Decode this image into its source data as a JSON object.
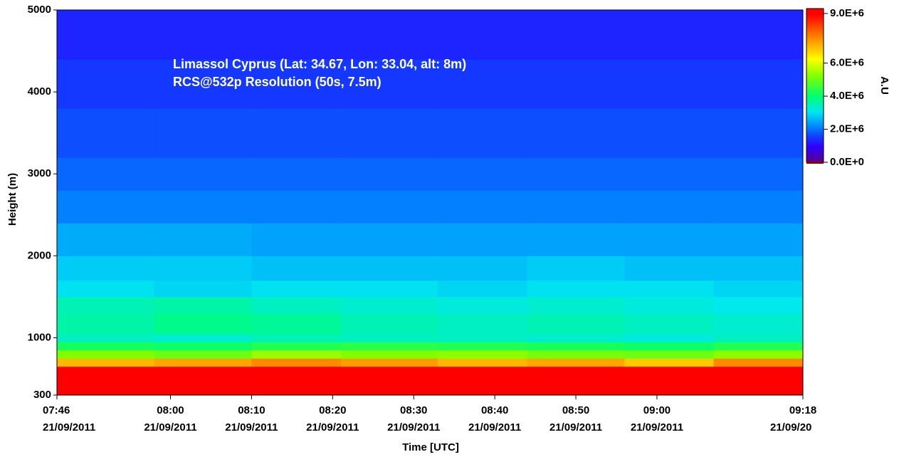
{
  "chart_data": {
    "type": "heatmap",
    "annotations": [
      "Limassol Cyprus (Lat: 34.67, Lon: 33.04, alt: 8m)",
      "RCS@532p Resolution (50s, 7.5m)"
    ],
    "xlabel": "Time [UTC]",
    "ylabel": "Height (m)",
    "colorbar_label": "A.U",
    "x": [
      "2011-09-21T07:46",
      "2011-09-21T07:58",
      "2011-09-21T08:10",
      "2011-09-21T08:21",
      "2011-09-21T08:33",
      "2011-09-21T08:44",
      "2011-09-21T08:56",
      "2011-09-21T09:07",
      "2011-09-21T09:18"
    ],
    "y": [
      300,
      650,
      750,
      850,
      950,
      1050,
      1300,
      1500,
      1700,
      2000,
      2400,
      2800,
      3200,
      3800,
      4400,
      5000
    ],
    "values": [
      [
        9200000,
        9200000,
        9200000,
        9200000,
        9200000,
        9200000,
        9200000,
        9200000
      ],
      [
        7000000,
        7200000,
        7500000,
        7300000,
        7000000,
        7200000,
        6800000,
        7500000
      ],
      [
        5200000,
        5000000,
        5400000,
        5200000,
        5300000,
        5100000,
        5000000,
        5300000
      ],
      [
        4200000,
        4100000,
        4300000,
        4400000,
        4300000,
        4200000,
        4100000,
        4300000
      ],
      [
        3400000,
        3300000,
        3500000,
        3400000,
        3400000,
        3300000,
        3200000,
        3400000
      ],
      [
        3600000,
        3800000,
        3700000,
        3500000,
        3400000,
        3500000,
        3400000,
        3300000
      ],
      [
        3500000,
        3600000,
        3400000,
        3300000,
        3200000,
        3300000,
        3200000,
        3100000
      ],
      [
        3000000,
        2900000,
        3000000,
        3000000,
        2900000,
        3000000,
        3000000,
        2900000
      ],
      [
        2800000,
        2800000,
        2700000,
        2700000,
        2700000,
        2800000,
        2700000,
        2700000
      ],
      [
        2500000,
        2500000,
        2400000,
        2400000,
        2400000,
        2400000,
        2400000,
        2400000
      ],
      [
        2100000,
        2100000,
        2100000,
        2100000,
        2100000,
        2100000,
        2100000,
        2100000
      ],
      [
        1900000,
        1900000,
        1900000,
        1900000,
        1900000,
        1900000,
        1900000,
        1900000
      ],
      [
        1700000,
        1700000,
        1700000,
        1700000,
        1700000,
        1700000,
        1700000,
        1700000
      ],
      [
        1500000,
        1500000,
        1500000,
        1500000,
        1500000,
        1500000,
        1500000,
        1500000
      ],
      [
        1300000,
        1300000,
        1300000,
        1300000,
        1300000,
        1300000,
        1300000,
        1300000
      ]
    ],
    "xlim": [
      "2011-09-21T07:46",
      "2011-09-21T09:18"
    ],
    "xticks": [
      {
        "value": "2011-09-21T07:46",
        "label": [
          "07:46",
          "21/09/2011"
        ]
      },
      {
        "value": "2011-09-21T08:00",
        "label": [
          "08:00",
          "21/09/2011"
        ]
      },
      {
        "value": "2011-09-21T08:10",
        "label": [
          "08:10",
          "21/09/2011"
        ]
      },
      {
        "value": "2011-09-21T08:20",
        "label": [
          "08:20",
          "21/09/2011"
        ]
      },
      {
        "value": "2011-09-21T08:30",
        "label": [
          "08:30",
          "21/09/2011"
        ]
      },
      {
        "value": "2011-09-21T08:40",
        "label": [
          "08:40",
          "21/09/2011"
        ]
      },
      {
        "value": "2011-09-21T08:50",
        "label": [
          "08:50",
          "21/09/2011"
        ]
      },
      {
        "value": "2011-09-21T09:00",
        "label": [
          "09:00",
          "21/09/2011"
        ]
      },
      {
        "value": "2011-09-21T09:18",
        "label": [
          "09:18",
          "21/09/20"
        ]
      }
    ],
    "ylim": [
      300,
      5000
    ],
    "yticks": [
      300,
      1000,
      2000,
      3000,
      4000,
      5000
    ],
    "clim": [
      0,
      9300000
    ],
    "cticks": [
      {
        "value": 0,
        "label": "0.0E+0"
      },
      {
        "value": 2000000,
        "label": "2.0E+6"
      },
      {
        "value": 4000000,
        "label": "4.0E+6"
      },
      {
        "value": 6000000,
        "label": "6.0E+6"
      },
      {
        "value": 9000000,
        "label": "9.0E+6"
      }
    ]
  }
}
